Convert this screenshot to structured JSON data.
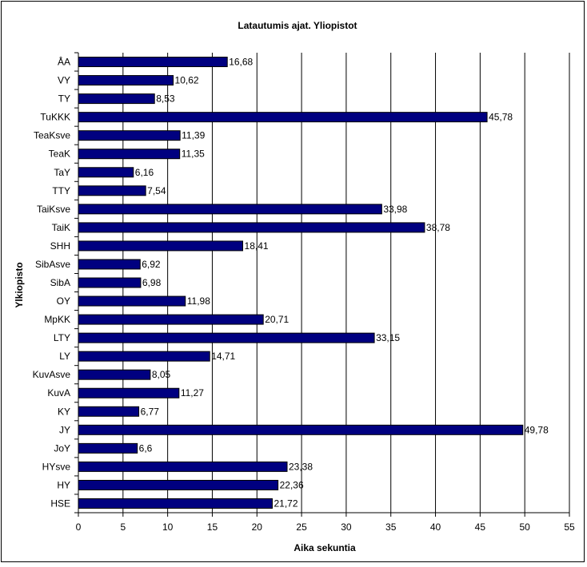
{
  "chart_data": {
    "type": "bar",
    "orientation": "horizontal",
    "title": "Latautumis ajat. Yliopistot",
    "xlabel": "Aika sekuntia",
    "ylabel": "Ylkiopisto",
    "xlim": [
      0,
      55
    ],
    "xticks": [
      "0",
      "5",
      "10",
      "15",
      "20",
      "25",
      "30",
      "35",
      "40",
      "45",
      "50",
      "55"
    ],
    "grid": true,
    "legend": "none",
    "bar_color": "#000080",
    "categories": [
      "ÅA",
      "VY",
      "TY",
      "TuKKK",
      "TeaKsve",
      "TeaK",
      "TaY",
      "TTY",
      "TaiKsve",
      "TaiK",
      "SHH",
      "SibAsve",
      "SibA",
      "OY",
      "MpKK",
      "LTY",
      "LY",
      "KuvAsve",
      "KuvA",
      "KY",
      "JY",
      "JoY",
      "HYsve",
      "HY",
      "HSE"
    ],
    "values": [
      16.68,
      10.62,
      8.53,
      45.78,
      11.39,
      11.35,
      6.16,
      7.54,
      33.98,
      38.78,
      18.41,
      6.92,
      6.98,
      11.98,
      20.71,
      33.15,
      14.71,
      8.05,
      11.27,
      6.77,
      49.78,
      6.6,
      23.38,
      22.36,
      21.72
    ],
    "value_labels": [
      "16,68",
      "10,62",
      "8,53",
      "45,78",
      "11,39",
      "11,35",
      "6,16",
      "7,54",
      "33,98",
      "38,78",
      "18,41",
      "6,92",
      "6,98",
      "11,98",
      "20,71",
      "33,15",
      "14,71",
      "8,05",
      "11,27",
      "6,77",
      "49,78",
      "6,6",
      "23,38",
      "22,36",
      "21,72"
    ]
  }
}
